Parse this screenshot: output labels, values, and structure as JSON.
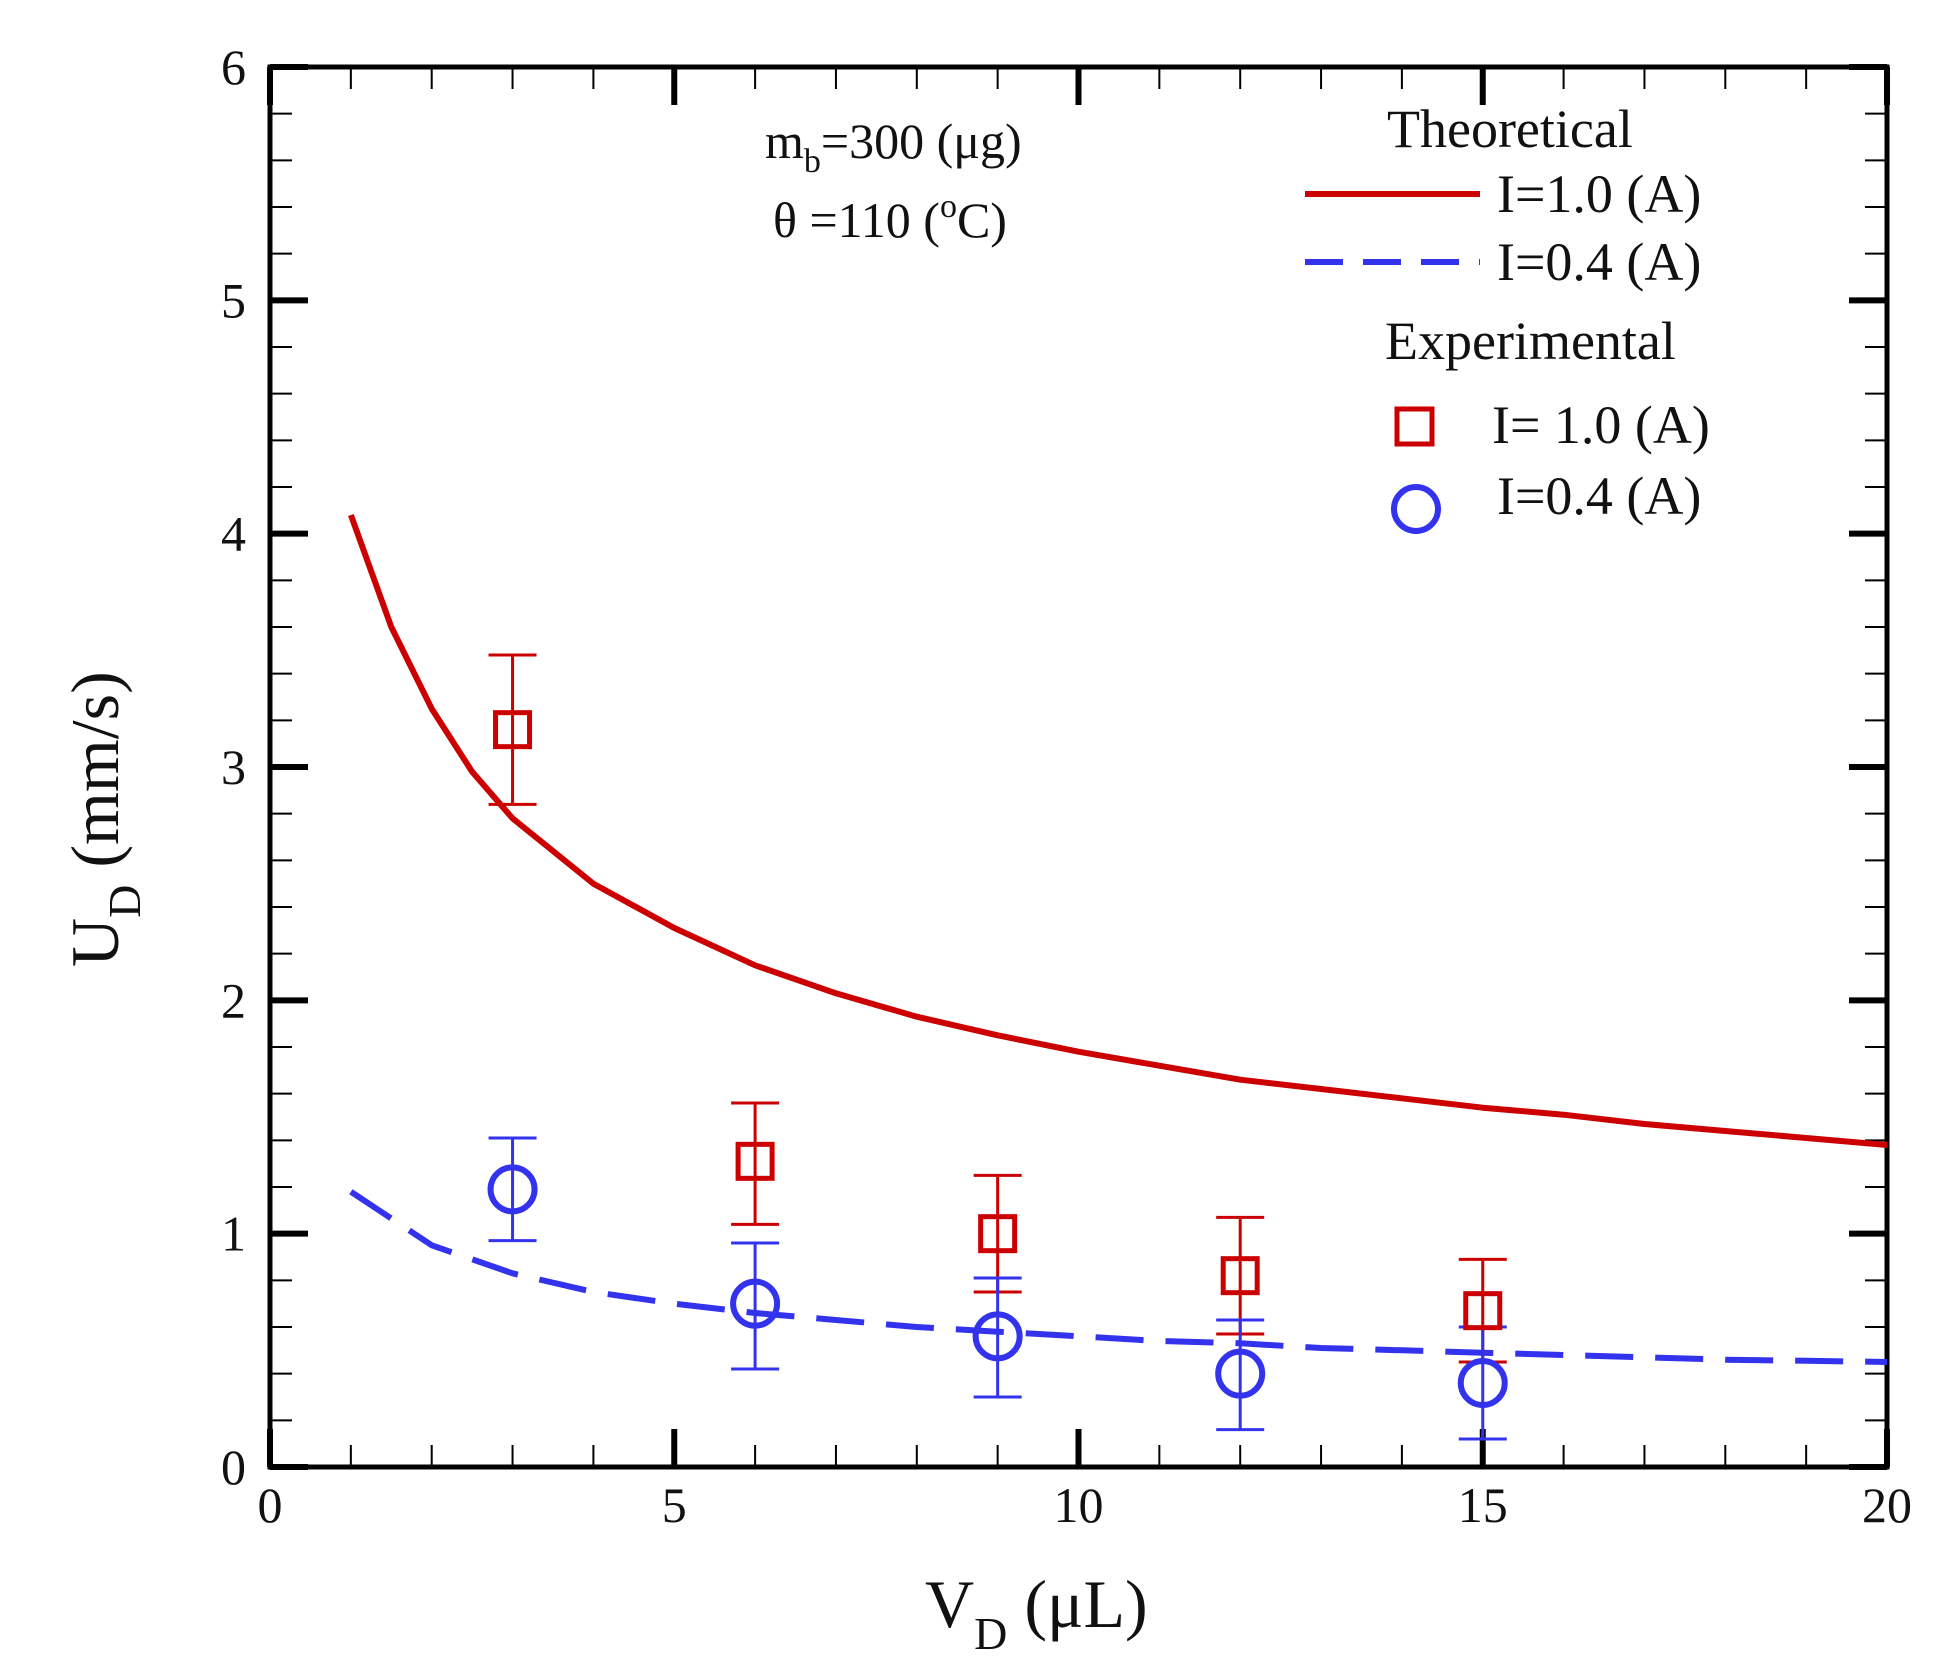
{
  "chart_data": {
    "type": "line+scatter",
    "xlabel": {
      "main": "V",
      "sub": "D",
      "unit": " (μL)"
    },
    "ylabel": {
      "main": "U",
      "sub": "D",
      "unit": " (mm/s)"
    },
    "xlim": [
      0,
      20
    ],
    "ylim": [
      0,
      6
    ],
    "x_ticks": [
      0,
      5,
      10,
      15,
      20
    ],
    "x_tick_labels": [
      "0",
      "5",
      "10",
      "15",
      "20"
    ],
    "y_ticks": [
      0,
      1,
      2,
      3,
      4,
      5,
      6
    ],
    "y_tick_labels": [
      "0",
      "1",
      "2",
      "3",
      "4",
      "5",
      "6"
    ],
    "x_minor_step": 1,
    "y_minor_step": 0.2,
    "annotation": {
      "line1": {
        "pre": "m",
        "sub": "b",
        "post": "=300 (μg)"
      },
      "line2": {
        "pre": "θ =110 (",
        "sup": "o",
        "post": "C)"
      }
    },
    "legend": {
      "position": "top-right",
      "theoretical_header": "Theoretical",
      "experimental_header": "Experimental",
      "theory_1_label": "I=1.0 (A)",
      "theory_04_label": "I=0.4 (A)",
      "exp_1_label": "I= 1.0 (A)",
      "exp_04_label": "I=0.4 (A)"
    },
    "series": [
      {
        "name": "Theoretical I=1.0 (A)",
        "kind": "line",
        "style": "solid",
        "color": "#cc0000",
        "x": [
          1,
          1.5,
          2,
          2.5,
          3,
          4,
          5,
          6,
          7,
          8,
          9,
          10,
          11,
          12,
          13,
          14,
          15,
          16,
          17,
          18,
          19,
          20
        ],
        "y": [
          4.08,
          3.6,
          3.25,
          2.98,
          2.78,
          2.5,
          2.31,
          2.15,
          2.03,
          1.93,
          1.85,
          1.78,
          1.72,
          1.66,
          1.62,
          1.58,
          1.54,
          1.51,
          1.47,
          1.44,
          1.41,
          1.38
        ]
      },
      {
        "name": "Theoretical I=0.4 (A)",
        "kind": "line",
        "style": "dashed",
        "color": "#3333ee",
        "x": [
          1,
          2,
          3,
          4,
          5,
          6,
          7,
          8,
          9,
          10,
          11,
          12,
          13,
          14,
          15,
          16,
          17,
          18,
          19,
          20
        ],
        "y": [
          1.18,
          0.95,
          0.83,
          0.75,
          0.7,
          0.66,
          0.63,
          0.6,
          0.58,
          0.56,
          0.54,
          0.53,
          0.51,
          0.5,
          0.49,
          0.48,
          0.47,
          0.46,
          0.455,
          0.45
        ]
      },
      {
        "name": "Experimental I= 1.0 (A)",
        "kind": "scatter",
        "marker": "square",
        "color": "#cc0000",
        "x": [
          3,
          6,
          9,
          12,
          15
        ],
        "y": [
          3.16,
          1.31,
          1.0,
          0.82,
          0.67
        ],
        "err_low": [
          2.84,
          1.04,
          0.75,
          0.57,
          0.45
        ],
        "err_high": [
          3.48,
          1.56,
          1.25,
          1.07,
          0.89
        ]
      },
      {
        "name": "Experimental I=0.4 (A)",
        "kind": "scatter",
        "marker": "circle",
        "color": "#3333ee",
        "x": [
          3,
          6,
          9,
          12,
          15
        ],
        "y": [
          1.19,
          0.7,
          0.56,
          0.4,
          0.36
        ],
        "err_low": [
          0.97,
          0.42,
          0.3,
          0.16,
          0.12
        ],
        "err_high": [
          1.41,
          0.96,
          0.81,
          0.63,
          0.6
        ]
      }
    ]
  }
}
